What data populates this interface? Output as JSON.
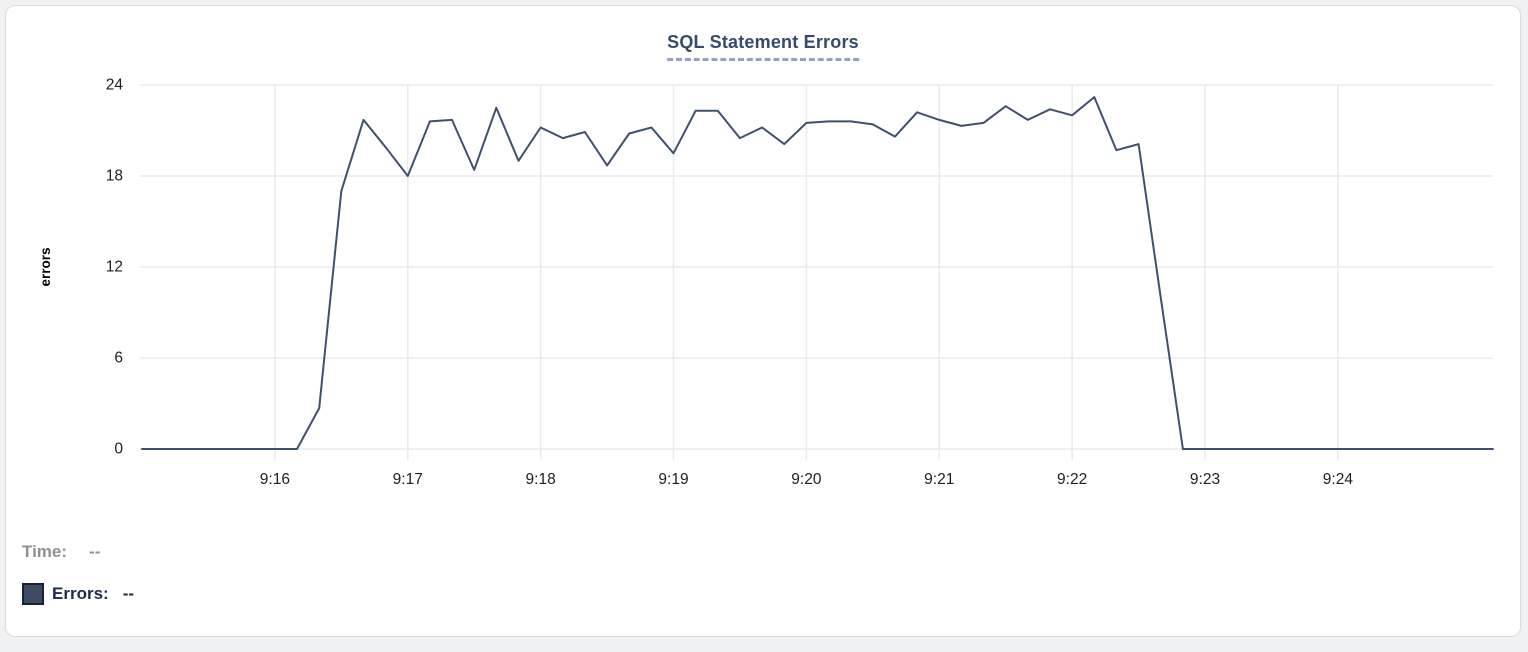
{
  "chart": {
    "title": "SQL Statement Errors",
    "y_axis_label": "errors"
  },
  "footer": {
    "time_label": "Time:",
    "time_value": "--",
    "errors_label": "Errors:",
    "errors_value": "--"
  },
  "colors": {
    "line": "#40506f",
    "grid": "#e9eaed",
    "tick_text": "#202020",
    "title": "#364a6e",
    "title_underline": "#93a2c2",
    "legend_swatch": "#3d4c63",
    "legend_swatch_border": "#13223f",
    "time_text": "#8d9094",
    "errors_text": "#1c2a49"
  },
  "chart_data": {
    "type": "line",
    "title": "SQL Statement Errors",
    "xlabel": "",
    "ylabel": "errors",
    "ylim": [
      0,
      24
    ],
    "yticks": [
      0,
      6,
      12,
      18,
      24
    ],
    "xticks": [
      "9:16",
      "9:17",
      "9:18",
      "9:19",
      "9:20",
      "9:21",
      "9:22",
      "9:23",
      "9:24"
    ],
    "grid": true,
    "legend_position": "bottom-left",
    "series": [
      {
        "name": "Errors",
        "x": [
          "9:15:00",
          "9:15:10",
          "9:15:20",
          "9:15:30",
          "9:15:40",
          "9:15:50",
          "9:16:00",
          "9:16:10",
          "9:16:20",
          "9:16:30",
          "9:16:40",
          "9:16:50",
          "9:17:00",
          "9:17:10",
          "9:17:20",
          "9:17:30",
          "9:17:40",
          "9:17:50",
          "9:18:00",
          "9:18:10",
          "9:18:20",
          "9:18:30",
          "9:18:40",
          "9:18:50",
          "9:19:00",
          "9:19:10",
          "9:19:20",
          "9:19:30",
          "9:19:40",
          "9:19:50",
          "9:20:00",
          "9:20:10",
          "9:20:20",
          "9:20:30",
          "9:20:40",
          "9:20:50",
          "9:21:00",
          "9:21:10",
          "9:21:20",
          "9:21:30",
          "9:21:40",
          "9:21:50",
          "9:22:00",
          "9:22:10",
          "9:22:20",
          "9:22:30",
          "9:22:40",
          "9:22:50",
          "9:23:00",
          "9:23:10",
          "9:23:20",
          "9:23:30",
          "9:23:40",
          "9:23:50",
          "9:24:00",
          "9:24:10",
          "9:24:20",
          "9:24:30",
          "9:24:40",
          "9:24:50",
          "9:25:00",
          "9:25:10"
        ],
        "values": [
          0,
          0,
          0,
          0,
          0,
          0,
          0,
          0,
          2.7,
          17,
          21.7,
          19.9,
          18,
          21.6,
          21.7,
          18.4,
          22.5,
          19,
          21.2,
          20.5,
          20.9,
          18.7,
          20.8,
          21.2,
          19.5,
          22.3,
          22.3,
          20.5,
          21.2,
          20.1,
          21.5,
          21.6,
          21.6,
          21.4,
          20.6,
          22.2,
          21.7,
          21.3,
          21.5,
          22.6,
          21.7,
          22.4,
          22.0,
          23.2,
          19.7,
          20.1,
          10,
          0,
          0,
          0,
          0,
          0,
          0,
          0,
          0,
          0,
          0,
          0,
          0,
          0,
          0,
          0
        ]
      }
    ]
  }
}
